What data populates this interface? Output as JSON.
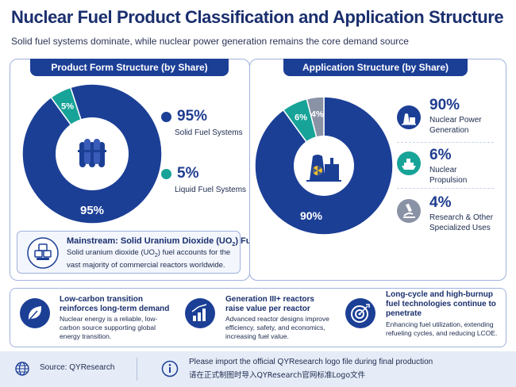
{
  "header": {
    "title": "Nuclear Fuel Product Classification and Application Structure",
    "subtitle": "Solid fuel systems dominate, while nuclear power generation remains the core demand source"
  },
  "colors": {
    "navy": "#1c3f96",
    "teal": "#17a398",
    "gray": "#8a93a6"
  },
  "left_panel": {
    "header": "Product Form Structure (by Share)",
    "legend": [
      {
        "value": "95%",
        "label": "Solid Fuel Systems",
        "color": "#1c3f96"
      },
      {
        "value": "5%",
        "label": "Liquid Fuel Systems",
        "color": "#17a398"
      }
    ],
    "mainstream": {
      "title_pre": "Mainstream: Solid Uranium Dioxide (UO",
      "title_sub": "2",
      "title_post": ") Fuel",
      "body_pre": "Solid uranium dioxide (UO",
      "body_sub": "2",
      "body_post": ") fuel accounts for the vast majority of commercial reactors worldwide."
    },
    "center_icon": "fuel-assembly-icon"
  },
  "right_panel": {
    "header": "Application Structure (by Share)",
    "legend": [
      {
        "value": "90%",
        "label_line1": "Nuclear Power",
        "label_line2": "Generation",
        "icon": "power-plant-icon"
      },
      {
        "value": "6%",
        "label_line1": "Nuclear",
        "label_line2": "Propulsion",
        "icon": "ship-icon"
      },
      {
        "value": "4%",
        "label_line1": "Research & Other",
        "label_line2": "Specialized Uses",
        "icon": "microscope-icon"
      }
    ],
    "center_icon": "nuclear-plant-icon"
  },
  "chart_data": [
    {
      "type": "pie",
      "title": "Product Form Structure (by Share)",
      "categories": [
        "Solid Fuel Systems",
        "Liquid Fuel Systems"
      ],
      "values": [
        95,
        5
      ],
      "data_labels": [
        "95%",
        "5%"
      ],
      "colors": [
        "#1c3f96",
        "#17a398"
      ],
      "donut": true
    },
    {
      "type": "pie",
      "title": "Application Structure (by Share)",
      "categories": [
        "Nuclear Power Generation",
        "Nuclear Propulsion",
        "Research & Other Specialized Uses"
      ],
      "values": [
        90,
        6,
        4
      ],
      "data_labels": [
        "90%",
        "6%",
        "4%"
      ],
      "colors": [
        "#1c3f96",
        "#17a398",
        "#8a93a6"
      ],
      "donut": true
    }
  ],
  "features": [
    {
      "title": "Low-carbon transition reinforces long-term demand",
      "body": "Nuclear energy is a reliable, low-carbon source supporting global energy transition.",
      "icon": "leaf-icon"
    },
    {
      "title": "Generation III+ reactors raise value per reactor",
      "body": "Advanced reactor designs improve efficiency, safety, and economics, increasing fuel value.",
      "icon": "bar-growth-icon"
    },
    {
      "title": "Long-cycle and high-burnup fuel technologies continue to penetrate",
      "body": "Enhancing fuel utilization, extending refueling cycles, and reducing LCOE.",
      "icon": "target-icon"
    }
  ],
  "footer": {
    "source": "Source: QYResearch",
    "note_en": "Please import the official QYResearch logo file during final production",
    "note_cn": "请在正式制图时导入QYResearch官网标准Logo文件"
  }
}
